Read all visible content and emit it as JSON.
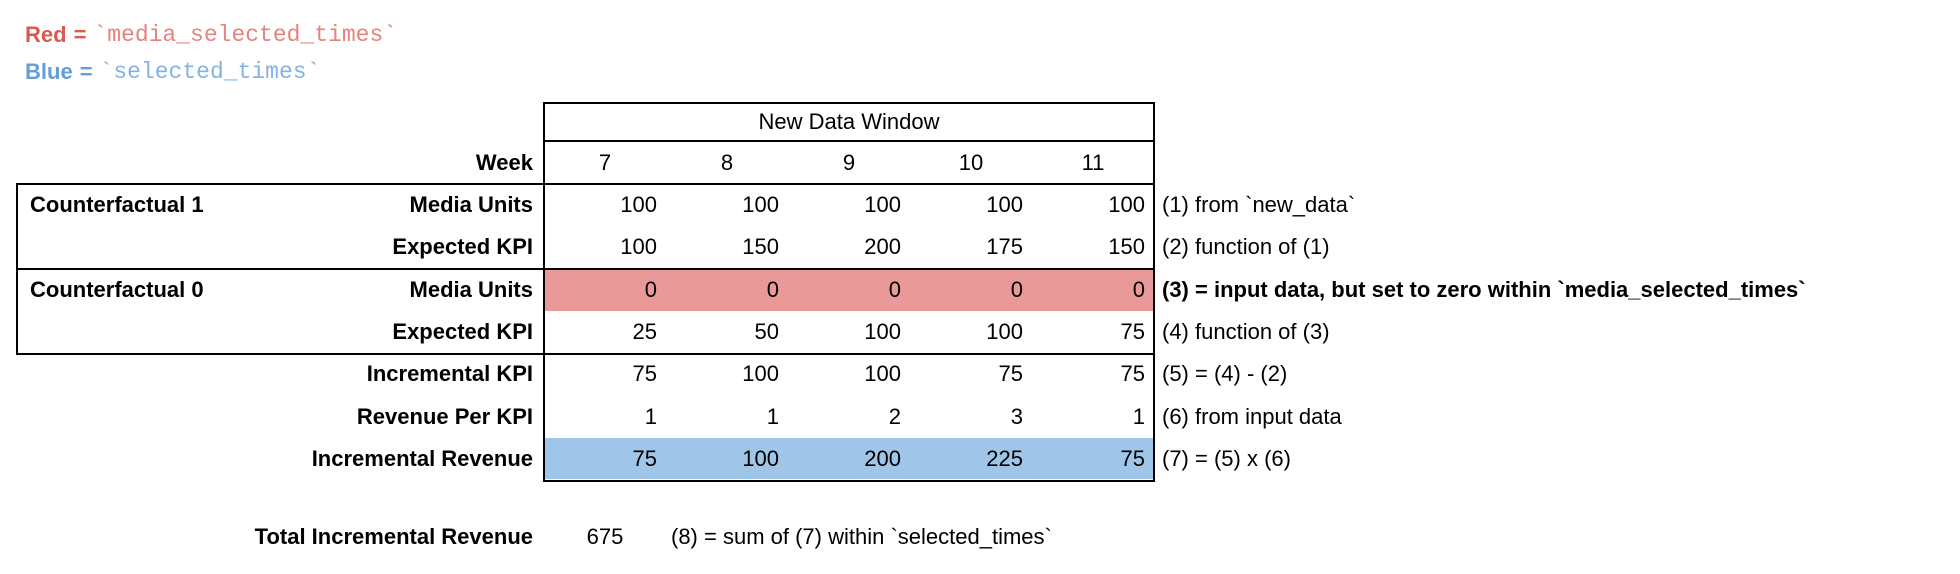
{
  "legend": {
    "eq": "=",
    "red": {
      "label": "Red",
      "code": "`media_selected_times`"
    },
    "blue": {
      "label": "Blue",
      "code": "`selected_times`"
    }
  },
  "colors": {
    "red_label": "#D95A52",
    "red_code": "#E7837D",
    "blue_label": "#649DD7",
    "blue_code": "#86B3E3",
    "red_highlight": "#EA9999",
    "blue_highlight": "#9FC5E8"
  },
  "table": {
    "header": "New Data Window",
    "week_label": "Week",
    "weeks": [
      "7",
      "8",
      "9",
      "10",
      "11"
    ],
    "rows": [
      {
        "section": "Counterfactual 1",
        "label": "Media Units",
        "values": [
          "100",
          "100",
          "100",
          "100",
          "100"
        ],
        "note": "(1) from `new_data`"
      },
      {
        "section": "",
        "label": "Expected KPI",
        "values": [
          "100",
          "150",
          "200",
          "175",
          "150"
        ],
        "note": "(2) function of (1)"
      },
      {
        "section": "Counterfactual 0",
        "label": "Media Units",
        "values": [
          "0",
          "0",
          "0",
          "0",
          "0"
        ],
        "note": "(3) = input data, but set to zero within `media_selected_times`",
        "highlight": "red"
      },
      {
        "section": "",
        "label": "Expected KPI",
        "values": [
          "25",
          "50",
          "100",
          "100",
          "75"
        ],
        "note": "(4) function of (3)"
      },
      {
        "section": "",
        "label": "Incremental KPI",
        "values": [
          "75",
          "100",
          "100",
          "75",
          "75"
        ],
        "note": "(5) = (4) - (2)"
      },
      {
        "section": "",
        "label": "Revenue Per KPI",
        "values": [
          "1",
          "1",
          "2",
          "3",
          "1"
        ],
        "note": "(6) from input data"
      },
      {
        "section": "",
        "label": "Incremental Revenue",
        "values": [
          "75",
          "100",
          "200",
          "225",
          "75"
        ],
        "note": "(7) = (5) x (6)",
        "highlight": "blue"
      }
    ]
  },
  "footer": {
    "label": "Total Incremental Revenue",
    "value": "675",
    "note": "(8) = sum of (7) within `selected_times`"
  }
}
